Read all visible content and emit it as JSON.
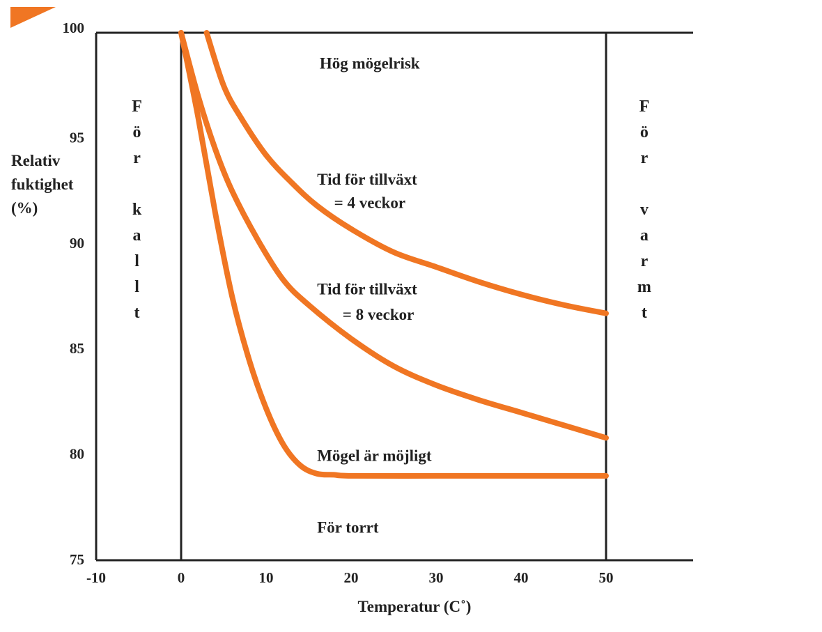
{
  "colors": {
    "curve": "#f07623",
    "axis": "#222222",
    "corner_mark": "#f07623"
  },
  "chart_data": {
    "type": "line",
    "title": "",
    "xlabel": "Temperatur (C˚)",
    "ylabel_lines": [
      "Relativ",
      "fuktighet",
      "(%)"
    ],
    "xlim": [
      -10,
      50
    ],
    "ylim": [
      75,
      100
    ],
    "x_ticks": [
      "-10",
      "0",
      "10",
      "20",
      "30",
      "40",
      "50"
    ],
    "y_ticks": [
      "75",
      "80",
      "85",
      "90",
      "95",
      "100"
    ],
    "grid": false,
    "reference_lines_x": [
      0,
      50
    ],
    "series": [
      {
        "x": [
          3,
          5,
          7,
          10,
          13,
          16,
          20,
          25,
          30,
          35,
          40,
          45,
          50
        ],
        "y": [
          100,
          97.5,
          96,
          94.2,
          92.9,
          91.8,
          90.7,
          89.6,
          88.9,
          88.2,
          87.6,
          87.1,
          86.7
        ]
      },
      {
        "x": [
          0,
          2,
          4,
          6,
          9,
          12,
          15,
          20,
          25,
          30,
          35,
          40,
          45,
          50
        ],
        "y": [
          100,
          97,
          94.5,
          92.5,
          90.2,
          88.3,
          87.1,
          85.5,
          84.2,
          83.3,
          82.6,
          82,
          81.4,
          80.8
        ]
      },
      {
        "x": [
          0,
          2,
          4,
          6,
          8,
          10,
          12,
          14,
          16,
          18,
          20,
          30,
          40,
          50
        ],
        "y": [
          100,
          96,
          91.5,
          87.5,
          84.5,
          82.2,
          80.5,
          79.5,
          79.1,
          79.05,
          79,
          79,
          79,
          79
        ]
      }
    ],
    "annotations": [
      {
        "text": "Hög mögelrisk",
        "x": 16.3,
        "y": 98.3
      },
      {
        "text": "Tid för tillväxt",
        "x": 16,
        "y": 92.8
      },
      {
        "text": "= 4 veckor",
        "x": 18,
        "y": 91.7
      },
      {
        "text": "Tid för tillväxt",
        "x": 16,
        "y": 87.6
      },
      {
        "text": "= 8 veckor",
        "x": 19,
        "y": 86.4
      },
      {
        "text": "Mögel är möjligt",
        "x": 16,
        "y": 79.7
      },
      {
        "text": "För torrt",
        "x": 16,
        "y": 76.3
      }
    ],
    "side_labels": [
      {
        "letters": [
          "F",
          "ö",
          "r",
          "",
          "k",
          "a",
          "l",
          "l",
          "t"
        ],
        "x": -5.2
      },
      {
        "letters": [
          "F",
          "ö",
          "r",
          "",
          "v",
          "a",
          "r",
          "m",
          "t"
        ],
        "x": 54.5
      }
    ]
  }
}
